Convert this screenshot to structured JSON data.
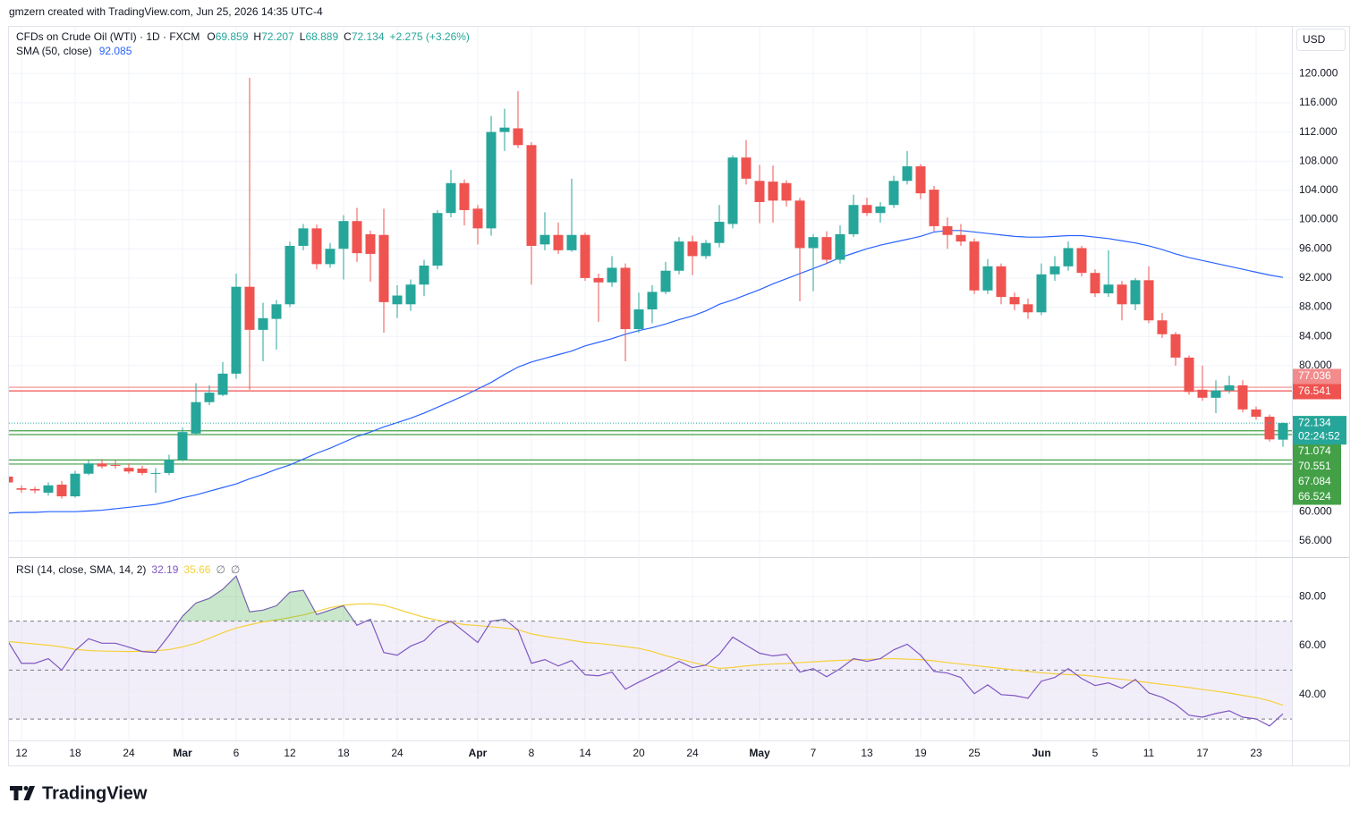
{
  "header": {
    "credit": "gmzern created with TradingView.com, Jun 25, 2026 14:35 UTC-4",
    "currency": "USD",
    "brand": "TradingView"
  },
  "chart_data": [
    {
      "type": "candlestick",
      "title": "CFDs on Crude Oil (WTI) · 1D · FXCM",
      "ohlc_legend": [
        {
          "label": "O",
          "value": "69.859"
        },
        {
          "label": "H",
          "value": "72.207"
        },
        {
          "label": "L",
          "value": "68.889"
        },
        {
          "label": "C",
          "value": "72.134"
        }
      ],
      "change": "+2.275 (+3.26%)",
      "categories": [
        null,
        "12",
        null,
        null,
        null,
        "18",
        null,
        null,
        null,
        "24",
        null,
        null,
        null,
        "Mar",
        null,
        null,
        null,
        "6",
        null,
        null,
        null,
        "12",
        null,
        null,
        null,
        "18",
        null,
        null,
        null,
        "24",
        null,
        null,
        null,
        null,
        null,
        "Apr",
        null,
        null,
        null,
        "8",
        null,
        null,
        null,
        "14",
        null,
        null,
        null,
        "20",
        null,
        null,
        null,
        "24",
        null,
        null,
        null,
        null,
        "May",
        null,
        null,
        null,
        "7",
        null,
        null,
        null,
        "13",
        null,
        null,
        null,
        "19",
        null,
        null,
        null,
        "25",
        null,
        null,
        null,
        null,
        "Jun",
        null,
        null,
        null,
        "5",
        null,
        null,
        null,
        "11",
        null,
        null,
        null,
        "17",
        null,
        null,
        null,
        "23",
        null,
        null
      ],
      "open": [
        64.8,
        63.2,
        63.1,
        62.6,
        63.7,
        62.1,
        65.2,
        66.6,
        66.4,
        66.0,
        65.9,
        65.2,
        65.3,
        67.1,
        70.7,
        75.0,
        76.0,
        78.9,
        90.8,
        84.9,
        86.4,
        88.4,
        96.4,
        98.8,
        93.9,
        96.0,
        99.8,
        98.0,
        97.9,
        88.4,
        88.4,
        91.1,
        93.7,
        100.9,
        105.0,
        101.5,
        98.8,
        112.0,
        112.5,
        110.2,
        96.6,
        97.9,
        95.8,
        97.9,
        92.0,
        91.4,
        93.4,
        85.0,
        87.7,
        90.1,
        93.0,
        97.0,
        95.0,
        96.8,
        99.4,
        108.5,
        105.3,
        105.2,
        105.0,
        102.6,
        96.1,
        97.6,
        94.5,
        98.0,
        102.0,
        100.9,
        102.0,
        105.3,
        107.3,
        104.1,
        99.1,
        97.9,
        97.0,
        90.3,
        93.6,
        89.4,
        88.4,
        87.3,
        92.5,
        93.6,
        96.1,
        92.7,
        89.9,
        91.1,
        88.4,
        91.7,
        86.2,
        84.3,
        81.1,
        76.7,
        75.6,
        76.6,
        77.3,
        74.0,
        73.0,
        69.859
      ],
      "high": [
        65.3,
        63.6,
        63.4,
        64.0,
        64.2,
        65.6,
        67.0,
        67.2,
        67.0,
        66.6,
        66.3,
        66.0,
        67.8,
        71.5,
        77.6,
        77.3,
        80.5,
        92.6,
        119.4,
        88.6,
        89.0,
        97.0,
        99.4,
        99.3,
        96.8,
        100.6,
        101.6,
        98.5,
        101.5,
        91.0,
        91.8,
        94.5,
        101.3,
        106.8,
        105.5,
        102.0,
        114.2,
        115.2,
        117.6,
        110.6,
        101.0,
        99.6,
        105.6,
        98.2,
        92.6,
        95.0,
        94.0,
        90.0,
        91.0,
        94.2,
        97.6,
        97.8,
        97.2,
        102.0,
        108.8,
        110.9,
        107.5,
        107.4,
        105.4,
        103.0,
        98.0,
        98.4,
        99.2,
        103.4,
        103.0,
        102.4,
        106.0,
        109.4,
        107.6,
        104.6,
        100.3,
        99.4,
        97.4,
        94.6,
        94.0,
        90.0,
        89.2,
        94.0,
        95.0,
        97.0,
        96.4,
        93.2,
        95.8,
        91.6,
        92.0,
        93.6,
        87.2,
        84.6,
        81.4,
        80.0,
        78.0,
        78.6,
        78.0,
        74.4,
        73.3,
        72.207
      ],
      "low": [
        63.5,
        62.6,
        62.5,
        62.2,
        61.8,
        61.9,
        65.0,
        65.9,
        65.9,
        65.2,
        65.0,
        62.6,
        65.0,
        66.9,
        70.5,
        74.6,
        75.8,
        78.2,
        76.7,
        80.6,
        82.2,
        88.0,
        95.8,
        93.2,
        93.4,
        91.8,
        94.2,
        91.5,
        84.5,
        86.5,
        87.5,
        89.5,
        93.2,
        100.3,
        99.2,
        96.6,
        97.8,
        109.4,
        109.8,
        91.1,
        95.8,
        95.3,
        95.6,
        91.6,
        86.0,
        90.8,
        80.6,
        84.5,
        85.8,
        89.8,
        92.5,
        92.4,
        94.6,
        96.2,
        98.8,
        104.8,
        99.5,
        99.6,
        101.8,
        88.8,
        90.2,
        94.0,
        94.0,
        97.6,
        100.5,
        99.6,
        101.6,
        104.8,
        102.8,
        98.4,
        96.0,
        96.4,
        89.8,
        89.8,
        88.4,
        87.6,
        86.4,
        86.9,
        91.6,
        93.0,
        92.2,
        89.4,
        89.4,
        86.2,
        87.6,
        85.8,
        83.8,
        80.0,
        76.0,
        75.2,
        73.5,
        76.2,
        73.6,
        72.6,
        69.6,
        68.889
      ],
      "close": [
        64.0,
        63.0,
        62.9,
        63.6,
        62.1,
        65.2,
        66.6,
        66.2,
        66.3,
        65.5,
        65.3,
        65.3,
        67.1,
        70.9,
        75.0,
        76.3,
        78.9,
        90.8,
        84.9,
        86.5,
        88.4,
        96.4,
        98.8,
        93.9,
        96.0,
        99.8,
        95.4,
        95.3,
        88.7,
        89.6,
        91.1,
        93.7,
        100.9,
        105.0,
        101.3,
        98.8,
        112.0,
        112.6,
        110.2,
        96.4,
        97.9,
        95.8,
        97.9,
        92.0,
        91.4,
        93.4,
        85.0,
        87.7,
        90.1,
        93.0,
        97.0,
        95.0,
        96.8,
        99.7,
        108.5,
        105.6,
        102.4,
        102.6,
        102.6,
        96.1,
        97.6,
        94.5,
        98.0,
        102.0,
        100.9,
        101.8,
        105.3,
        107.3,
        103.6,
        99.1,
        97.9,
        97.0,
        90.3,
        93.6,
        89.4,
        88.4,
        87.3,
        92.5,
        93.6,
        96.1,
        92.7,
        89.9,
        91.1,
        88.4,
        91.7,
        86.2,
        84.3,
        81.1,
        76.4,
        75.6,
        76.6,
        77.3,
        74.0,
        73.0,
        69.9,
        72.134
      ],
      "up_color": "#26a69a",
      "down_color": "#ef5350",
      "ylim": [
        53.9,
        126.4
      ],
      "yticks": [
        {
          "value": 120,
          "label": "120.000"
        },
        {
          "value": 116,
          "label": "116.000"
        },
        {
          "value": 112,
          "label": "112.000"
        },
        {
          "value": 108,
          "label": "108.000"
        },
        {
          "value": 104,
          "label": "104.000"
        },
        {
          "value": 100,
          "label": "100.000"
        },
        {
          "value": 96,
          "label": "96.000"
        },
        {
          "value": 92,
          "label": "92.000"
        },
        {
          "value": 88,
          "label": "88.000"
        },
        {
          "value": 84,
          "label": "84.000"
        },
        {
          "value": 80,
          "label": "80.000"
        },
        {
          "value": 60,
          "label": "60.000"
        },
        {
          "value": 56,
          "label": "56.000"
        }
      ],
      "grid": true,
      "overlays": [
        {
          "type": "line",
          "name": "SMA (50, close)",
          "value_label": "92.085",
          "color": "#2962ff",
          "values": [
            59.8,
            59.9,
            59.9,
            60.0,
            60.0,
            60.0,
            60.1,
            60.2,
            60.4,
            60.6,
            60.8,
            61.0,
            61.4,
            61.9,
            62.3,
            62.8,
            63.3,
            63.8,
            64.5,
            65.1,
            65.8,
            66.4,
            67.2,
            68.0,
            68.7,
            69.5,
            70.3,
            70.9,
            71.6,
            72.2,
            72.8,
            73.5,
            74.3,
            75.1,
            75.9,
            76.8,
            77.7,
            78.8,
            79.8,
            80.5,
            81.0,
            81.5,
            82.0,
            82.7,
            83.2,
            83.7,
            84.3,
            84.8,
            85.2,
            85.7,
            86.3,
            86.8,
            87.5,
            88.4,
            89.0,
            89.7,
            90.4,
            91.2,
            91.9,
            92.6,
            93.3,
            94.0,
            94.8,
            95.4,
            96.0,
            96.5,
            96.9,
            97.3,
            97.7,
            98.3,
            98.5,
            98.5,
            98.3,
            98.1,
            97.9,
            97.7,
            97.6,
            97.6,
            97.7,
            97.8,
            97.8,
            97.6,
            97.4,
            97.1,
            96.8,
            96.4,
            95.9,
            95.3,
            94.8,
            94.4,
            94.0,
            93.6,
            93.2,
            92.8,
            92.4,
            92.085
          ]
        }
      ],
      "levels": [
        {
          "value": 77.036,
          "label": "77.036",
          "color": "#f28b8b"
        },
        {
          "value": 76.541,
          "label": "76.541",
          "color": "#ef5350"
        },
        {
          "value": 71.074,
          "label": "71.074",
          "color": "#43a047"
        },
        {
          "value": 70.551,
          "label": "70.551",
          "color": "#43a047"
        },
        {
          "value": 67.084,
          "label": "67.084",
          "color": "#43a047"
        },
        {
          "value": 66.524,
          "label": "66.524",
          "color": "#43a047"
        }
      ],
      "last_price": {
        "value": 72.134,
        "label": "72.134",
        "countdown": "02:24:52",
        "color": "#26a69a"
      }
    },
    {
      "type": "line",
      "title": "RSI (14, close, SMA, 14, 2)",
      "extra_labels": [
        "∅",
        "∅"
      ],
      "series": [
        {
          "color": "#7e57c2",
          "value_label": "32.19",
          "values": [
            61.7,
            52.8,
            52.8,
            54.7,
            50.0,
            58.0,
            62.8,
            61.0,
            61.0,
            59.4,
            57.6,
            57.2,
            64.2,
            72.0,
            77.4,
            79.3,
            83.0,
            88.4,
            73.8,
            74.5,
            76.3,
            81.8,
            82.6,
            72.7,
            74.5,
            76.3,
            68.3,
            70.8,
            57.2,
            56.1,
            59.8,
            62.0,
            67.5,
            70.0,
            65.7,
            61.3,
            70.0,
            70.8,
            66.4,
            52.8,
            54.3,
            51.7,
            53.9,
            48.1,
            47.7,
            49.2,
            42.2,
            45.1,
            47.7,
            50.3,
            53.6,
            51.0,
            52.1,
            56.5,
            63.5,
            60.2,
            56.9,
            55.8,
            56.5,
            49.2,
            50.6,
            47.3,
            50.6,
            54.7,
            53.6,
            54.7,
            58.3,
            60.6,
            56.1,
            49.5,
            48.8,
            47.0,
            40.4,
            44.0,
            40.0,
            39.6,
            38.5,
            45.5,
            47.0,
            50.6,
            46.6,
            43.7,
            44.8,
            42.6,
            46.2,
            40.7,
            38.9,
            36.0,
            31.6,
            30.8,
            32.3,
            33.4,
            30.8,
            30.1,
            27.2,
            32.19
          ]
        },
        {
          "color": "#f5d03b",
          "value_label": "35.66",
          "values": [
            61.7,
            61.2,
            60.7,
            60.2,
            59.5,
            58.5,
            58.0,
            57.8,
            57.7,
            57.6,
            57.7,
            57.9,
            58.4,
            59.5,
            61.0,
            63.0,
            65.3,
            67.2,
            68.5,
            69.7,
            70.5,
            71.5,
            72.5,
            74.0,
            75.5,
            76.5,
            77.0,
            77.1,
            76.5,
            74.9,
            73.2,
            71.6,
            70.4,
            69.5,
            68.6,
            68.2,
            67.7,
            67.2,
            66.5,
            64.8,
            63.8,
            63.0,
            62.2,
            61.3,
            60.9,
            60.3,
            59.6,
            58.9,
            57.6,
            55.9,
            54.5,
            53.2,
            51.9,
            50.7,
            51.1,
            51.7,
            52.2,
            52.5,
            52.7,
            53.1,
            53.4,
            53.7,
            54.0,
            54.2,
            54.4,
            54.6,
            54.7,
            54.5,
            54.3,
            53.8,
            53.1,
            52.5,
            51.9,
            51.3,
            50.7,
            50.1,
            49.5,
            48.9,
            48.5,
            48.2,
            48.0,
            47.4,
            46.8,
            46.3,
            45.6,
            44.9,
            44.2,
            43.6,
            42.9,
            42.1,
            41.4,
            40.6,
            39.7,
            38.8,
            37.5,
            35.66
          ]
        }
      ],
      "ylim": [
        21.3,
        95.8
      ],
      "yticks": [
        {
          "value": 80,
          "label": "80.00"
        },
        {
          "value": 60,
          "label": "60.00"
        },
        {
          "value": 40,
          "label": "40.00"
        }
      ],
      "levels": [
        70,
        50,
        30
      ],
      "band": [
        30,
        70
      ],
      "band_color": "#7e57c2",
      "overbought_color": "#4caf50"
    }
  ]
}
